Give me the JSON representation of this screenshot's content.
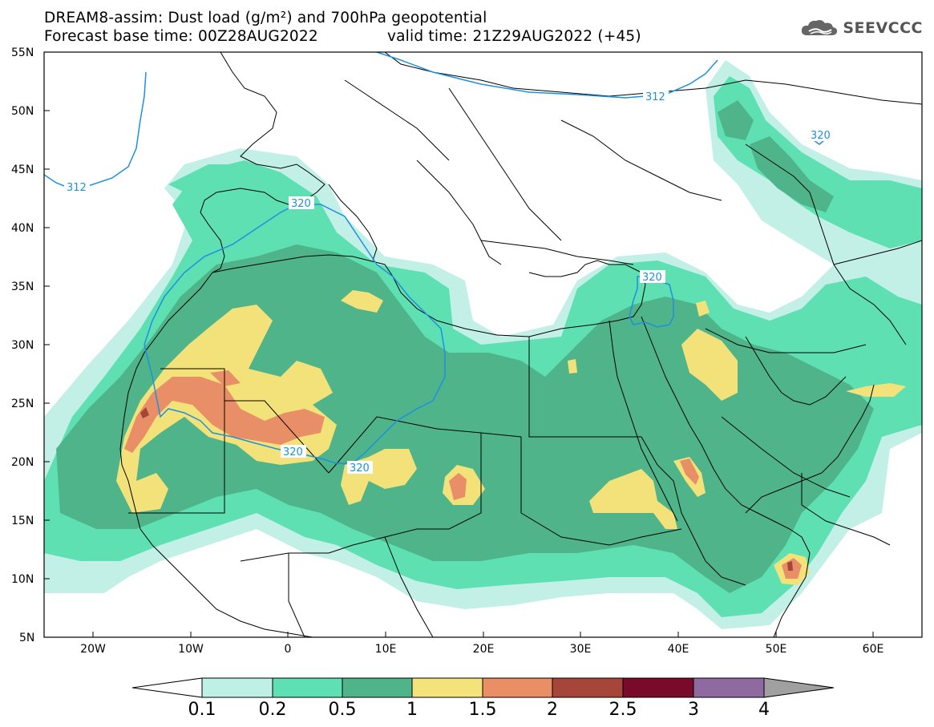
{
  "title": {
    "line1": "DREAM8-assim: Dust load (g/m²) and 700hPa geopotential",
    "line2_left": "Forecast base time: 00Z28AUG2022",
    "line2_right": "valid time: 21Z29AUG2022 (+45)"
  },
  "logo": {
    "text": "SEEVCCC",
    "icon": "cloud-logo-icon"
  },
  "map": {
    "lat_labels": [
      "55N",
      "50N",
      "45N",
      "40N",
      "35N",
      "30N",
      "25N",
      "20N",
      "15N",
      "10N",
      "5N"
    ],
    "lon_labels": [
      "20W",
      "10W",
      "0",
      "10E",
      "20E",
      "30E",
      "40E",
      "50E",
      "60E"
    ],
    "contour_labels": [
      "312",
      "312",
      "320",
      "320",
      "320",
      "320",
      "320"
    ]
  },
  "legend": {
    "thresholds": [
      "0.1",
      "0.2",
      "0.5",
      "1",
      "1.5",
      "2",
      "2.5",
      "3",
      "4"
    ],
    "colors": [
      "#bff0e6",
      "#5fe0b4",
      "#4fb48a",
      "#f4e37a",
      "#ea8e66",
      "#a54638",
      "#7a0a2a",
      "#8e6aa0",
      "#a0a0a0"
    ],
    "lower_arrow_color": "#ffffff",
    "upper_arrow_color": "#a0a0a0"
  },
  "colors": {
    "dust_0_1": "#c2efe6",
    "dust_0_2": "#5ee0b3",
    "dust_0_5": "#4fb48a",
    "dust_1": "#f3e27a",
    "dust_1_5": "#e98f68",
    "dust_2": "#a54638",
    "contour": "#1e90e0"
  }
}
